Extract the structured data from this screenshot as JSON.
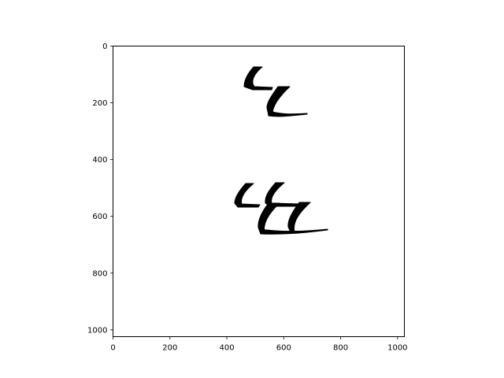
{
  "figure": {
    "background": "#ffffff",
    "ink_color": "#000000",
    "content": "handwritten-glyphs",
    "axes": {
      "x_ticks": [
        "0",
        "200",
        "400",
        "600",
        "800",
        "1000"
      ],
      "y_ticks": [
        "0",
        "200",
        "400",
        "600",
        "800",
        "1000"
      ],
      "x_range": [
        0,
        1024
      ],
      "y_range": [
        1024,
        0
      ],
      "y_inverted": true,
      "grid": false
    }
  }
}
